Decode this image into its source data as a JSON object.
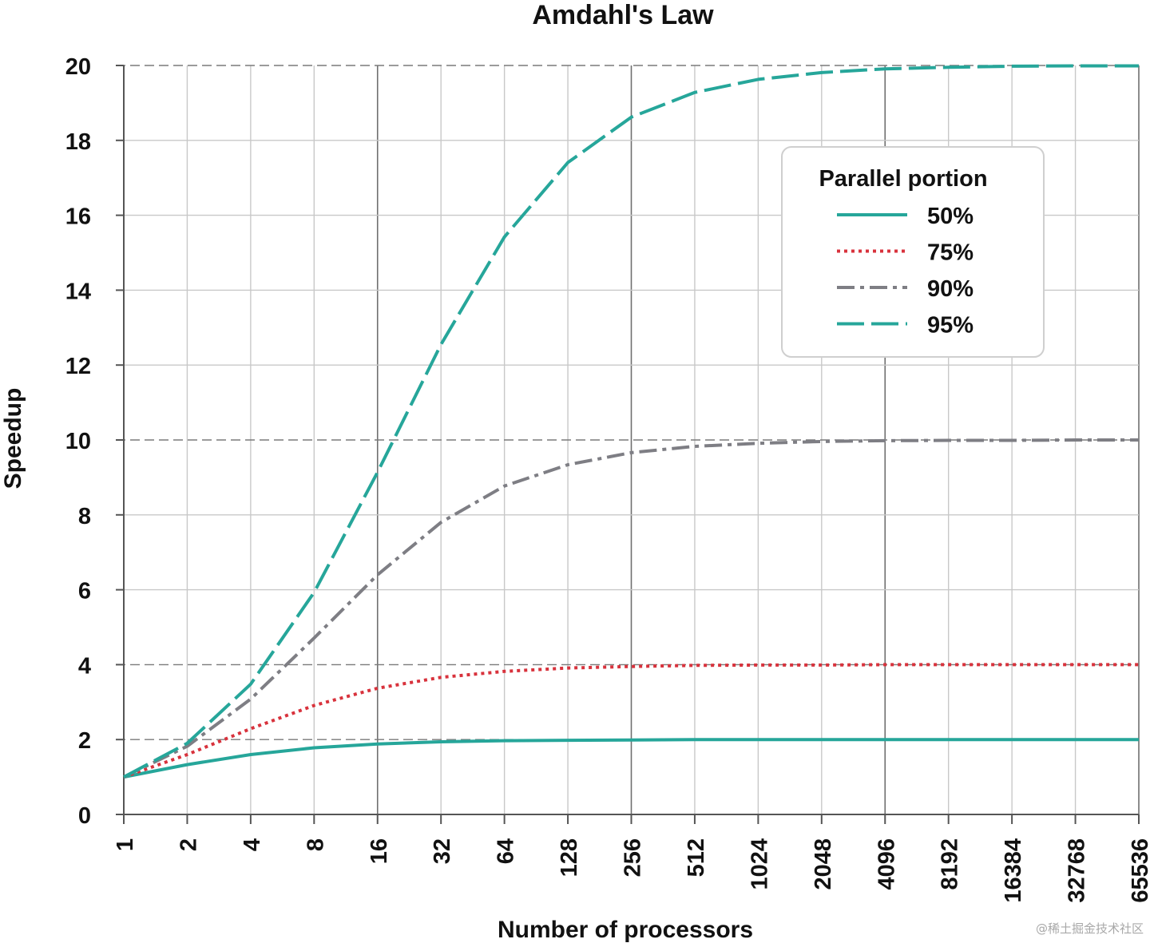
{
  "chart_data": {
    "type": "line",
    "title": "Amdahl's Law",
    "xlabel": "Number of processors",
    "ylabel": "Speedup",
    "x_scale": "log2",
    "x": [
      1,
      2,
      4,
      8,
      16,
      32,
      64,
      128,
      256,
      512,
      1024,
      2048,
      4096,
      8192,
      16384,
      32768,
      65536
    ],
    "x_tick_labels": [
      "1",
      "2",
      "4",
      "8",
      "16",
      "32",
      "64",
      "128",
      "256",
      "512",
      "1024",
      "2048",
      "4096",
      "8192",
      "16384",
      "32768",
      "65536"
    ],
    "ylim": [
      0,
      20
    ],
    "y_ticks": [
      0,
      2,
      4,
      6,
      8,
      10,
      12,
      14,
      16,
      18,
      20
    ],
    "y_tick_labels": [
      "0",
      "2",
      "4",
      "6",
      "8",
      "10",
      "12",
      "14",
      "16",
      "18",
      "20"
    ],
    "grid": true,
    "legend": {
      "title": "Parallel portion",
      "placement": "top-right"
    },
    "series": [
      {
        "name": "50%",
        "style": "solid",
        "color": "#26a69a",
        "values": [
          1.0,
          1.33,
          1.6,
          1.78,
          1.88,
          1.94,
          1.97,
          1.98,
          1.99,
          2.0,
          2.0,
          2.0,
          2.0,
          2.0,
          2.0,
          2.0,
          2.0
        ]
      },
      {
        "name": "75%",
        "style": "dotted",
        "color": "#d8323c",
        "values": [
          1.0,
          1.6,
          2.29,
          2.91,
          3.37,
          3.66,
          3.82,
          3.91,
          3.95,
          3.98,
          3.99,
          3.99,
          4.0,
          4.0,
          4.0,
          4.0,
          4.0
        ]
      },
      {
        "name": "90%",
        "style": "dashdot",
        "color": "#7e7e84",
        "values": [
          1.0,
          1.82,
          3.08,
          4.71,
          6.4,
          7.8,
          8.77,
          9.34,
          9.66,
          9.83,
          9.91,
          9.96,
          9.98,
          9.99,
          9.99,
          10.0,
          10.0
        ]
      },
      {
        "name": "95%",
        "style": "dashed",
        "color": "#26a69a",
        "values": [
          1.0,
          1.9,
          3.48,
          5.93,
          9.14,
          12.55,
          15.42,
          17.41,
          18.62,
          19.28,
          19.63,
          19.81,
          19.91,
          19.95,
          19.98,
          19.99,
          19.99
        ]
      }
    ]
  },
  "watermark": "@稀土掘金技术社区"
}
